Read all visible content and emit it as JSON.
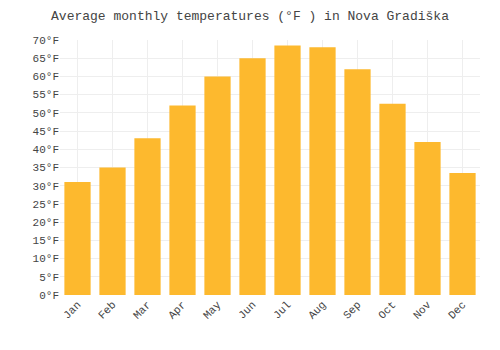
{
  "chart_data": {
    "type": "bar",
    "title": "Average monthly temperatures (°F ) in Nova Gradiška",
    "categories": [
      "Jan",
      "Feb",
      "Mar",
      "Apr",
      "May",
      "Jun",
      "Jul",
      "Aug",
      "Sep",
      "Oct",
      "Nov",
      "Dec"
    ],
    "values": [
      31,
      35,
      43,
      52,
      60,
      65,
      68.5,
      68,
      62,
      52.5,
      42,
      33.5
    ],
    "color": "#FDB92E",
    "ylim": [
      0,
      70
    ],
    "yticks": [
      {
        "value": 0,
        "label": "0°F"
      },
      {
        "value": 5,
        "label": "5°F"
      },
      {
        "value": 10,
        "label": "10°F"
      },
      {
        "value": 15,
        "label": "15°F"
      },
      {
        "value": 20,
        "label": "20°F"
      },
      {
        "value": 25,
        "label": "25°F"
      },
      {
        "value": 30,
        "label": "30°F"
      },
      {
        "value": 35,
        "label": "35°F"
      },
      {
        "value": 40,
        "label": "40°F"
      },
      {
        "value": 45,
        "label": "45°F"
      },
      {
        "value": 50,
        "label": "50°F"
      },
      {
        "value": 55,
        "label": "55°F"
      },
      {
        "value": 60,
        "label": "60°F"
      },
      {
        "value": 65,
        "label": "65°F"
      },
      {
        "value": 70,
        "label": "70°F"
      }
    ],
    "grid": true
  }
}
